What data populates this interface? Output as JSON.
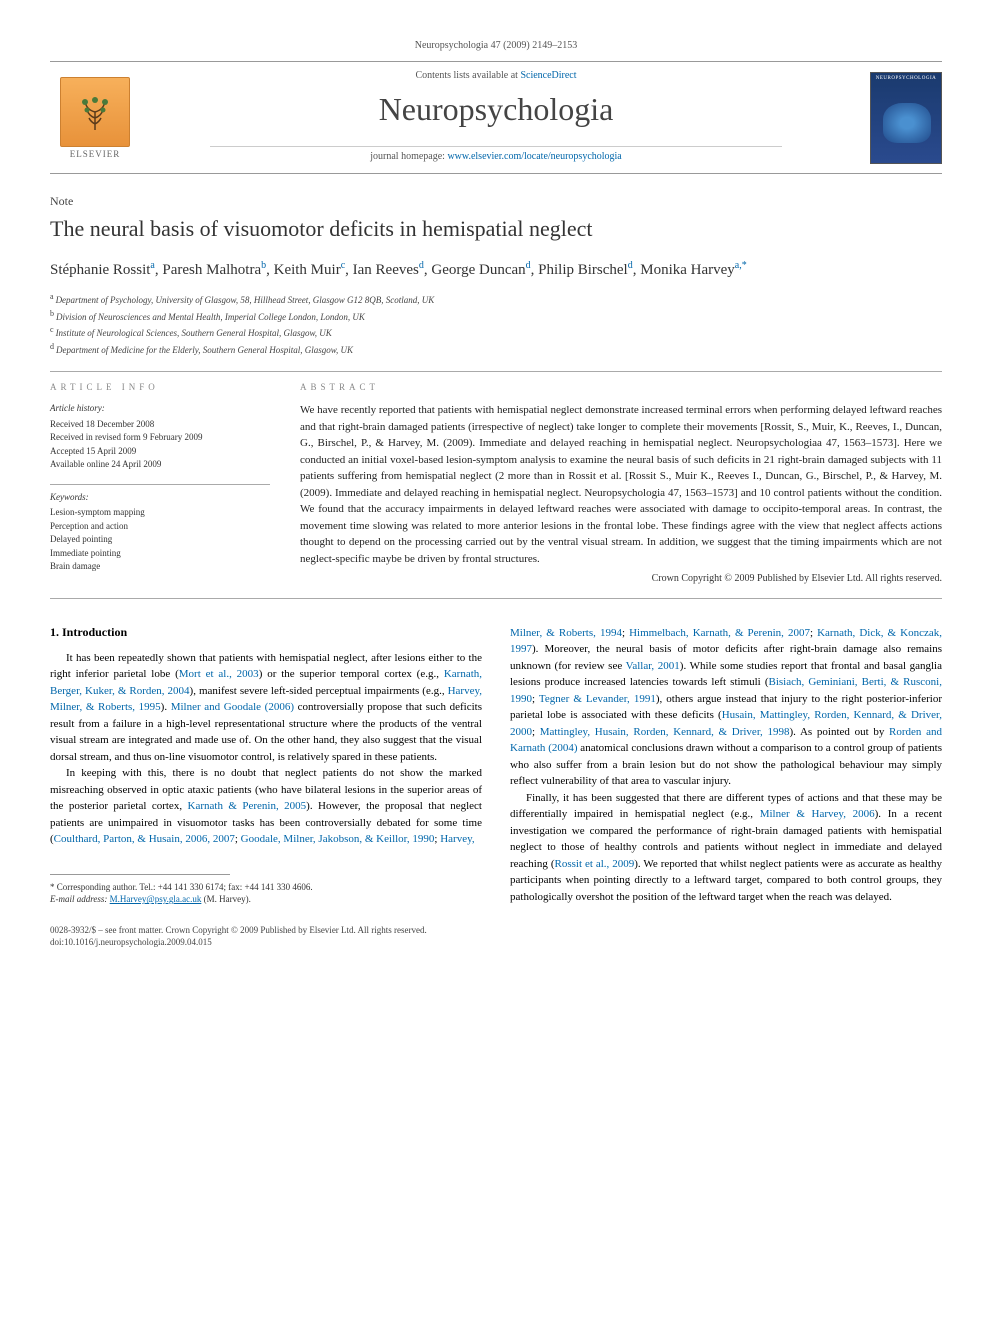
{
  "header": {
    "running": "Neuropsychologia 47 (2009) 2149–2153",
    "contents_prefix": "Contents lists available at ",
    "contents_link": "ScienceDirect",
    "journal": "Neuropsychologia",
    "homepage_prefix": "journal homepage: ",
    "homepage_url": "www.elsevier.com/locate/neuropsychologia",
    "publisher": "ELSEVIER",
    "cover_label": "NEUROPSYCHOLOGIA"
  },
  "article": {
    "type": "Note",
    "title": "The neural basis of visuomotor deficits in hemispatial neglect",
    "authors_html": "Stéphanie Rossit<span class='sup'>a</span>, Paresh Malhotra<span class='sup'>b</span>, Keith Muir<span class='sup'>c</span>, Ian Reeves<span class='sup'>d</span>, George Duncan<span class='sup'>d</span>, Philip Birschel<span class='sup'>d</span>, Monika Harvey<span class='sup'>a,*</span>",
    "affiliations": [
      {
        "sup": "a",
        "text": "Department of Psychology, University of Glasgow, 58, Hillhead Street, Glasgow G12 8QB, Scotland, UK"
      },
      {
        "sup": "b",
        "text": "Division of Neurosciences and Mental Health, Imperial College London, London, UK"
      },
      {
        "sup": "c",
        "text": "Institute of Neurological Sciences, Southern General Hospital, Glasgow, UK"
      },
      {
        "sup": "d",
        "text": "Department of Medicine for the Elderly, Southern General Hospital, Glasgow, UK"
      }
    ]
  },
  "info": {
    "heading": "ARTICLE INFO",
    "history_label": "Article history:",
    "history": [
      "Received 18 December 2008",
      "Received in revised form 9 February 2009",
      "Accepted 15 April 2009",
      "Available online 24 April 2009"
    ],
    "keywords_label": "Keywords:",
    "keywords": [
      "Lesion-symptom mapping",
      "Perception and action",
      "Delayed pointing",
      "Immediate pointing",
      "Brain damage"
    ]
  },
  "abstract": {
    "heading": "ABSTRACT",
    "text": "We have recently reported that patients with hemispatial neglect demonstrate increased terminal errors when performing delayed leftward reaches and that right-brain damaged patients (irrespective of neglect) take longer to complete their movements [Rossit, S., Muir, K., Reeves, I., Duncan, G., Birschel, P., & Harvey, M. (2009). Immediate and delayed reaching in hemispatial neglect. Neuropsychologiaa 47, 1563–1573]. Here we conducted an initial voxel-based lesion-symptom analysis to examine the neural basis of such deficits in 21 right-brain damaged subjects with 11 patients suffering from hemispatial neglect (2 more than in Rossit et al. [Rossit S., Muir K., Reeves I., Duncan, G., Birschel, P., & Harvey, M. (2009). Immediate and delayed reaching in hemispatial neglect. Neuropsychologia 47, 1563–1573] and 10 control patients without the condition. We found that the accuracy impairments in delayed leftward reaches were associated with damage to occipito-temporal areas. In contrast, the movement time slowing was related to more anterior lesions in the frontal lobe. These findings agree with the view that neglect affects actions thought to depend on the processing carried out by the ventral visual stream. In addition, we suggest that the timing impairments which are not neglect-specific maybe be driven by frontal structures.",
    "copyright": "Crown Copyright © 2009 Published by Elsevier Ltd. All rights reserved."
  },
  "body": {
    "section_number": "1.",
    "section_title": "Introduction",
    "p1_html": "It has been repeatedly shown that patients with hemispatial neglect, after lesions either to the right inferior parietal lobe (<span class='ref'>Mort et al., 2003</span>) or the superior temporal cortex (e.g., <span class='ref'>Karnath, Berger, Kuker, & Rorden, 2004</span>), manifest severe left-sided perceptual impairments (e.g., <span class='ref'>Harvey, Milner, & Roberts, 1995</span>). <span class='ref'>Milner and Goodale (2006)</span> controversially propose that such deficits result from a failure in a high-level representational structure where the products of the ventral visual stream are integrated and made use of. On the other hand, they also suggest that the visual dorsal stream, and thus on-line visuomotor control, is relatively spared in these patients.",
    "p2_html": "In keeping with this, there is no doubt that neglect patients do not show the marked misreaching observed in optic ataxic patients (who have bilateral lesions in the superior areas of the posterior parietal cortex, <span class='ref'>Karnath & Perenin, 2005</span>). However, the proposal that neglect patients are unimpaired in visuomotor tasks has been controversially debated for some time (<span class='ref'>Coulthard, Parton, & Husain, 2006, 2007</span>; <span class='ref'>Goodale, Milner, Jakobson, & Keillor, 1990</span>; <span class='ref'>Harvey,</span>",
    "p2b_html": "<span class='ref'>Milner, & Roberts, 1994</span>; <span class='ref'>Himmelbach, Karnath, & Perenin, 2007</span>; <span class='ref'>Karnath, Dick, & Konczak, 1997</span>). Moreover, the neural basis of motor deficits after right-brain damage also remains unknown (for review see <span class='ref'>Vallar, 2001</span>). While some studies report that frontal and basal ganglia lesions produce increased latencies towards left stimuli (<span class='ref'>Bisiach, Geminiani, Berti, & Rusconi, 1990</span>; <span class='ref'>Tegner & Levander, 1991</span>), others argue instead that injury to the right posterior-inferior parietal lobe is associated with these deficits (<span class='ref'>Husain, Mattingley, Rorden, Kennard, & Driver, 2000</span>; <span class='ref'>Mattingley, Husain, Rorden, Kennard, & Driver, 1998</span>). As pointed out by <span class='ref'>Rorden and Karnath (2004)</span> anatomical conclusions drawn without a comparison to a control group of patients who also suffer from a brain lesion but do not show the pathological behaviour may simply reflect vulnerability of that area to vascular injury.",
    "p3_html": "Finally, it has been suggested that there are different types of actions and that these may be differentially impaired in hemispatial neglect (e.g., <span class='ref'>Milner & Harvey, 2006</span>). In a recent investigation we compared the performance of right-brain damaged patients with hemispatial neglect to those of healthy controls and patients without neglect in immediate and delayed reaching (<span class='ref'>Rossit et al., 2009</span>). We reported that whilst neglect patients were as accurate as healthy participants when pointing directly to a leftward target, compared to both control groups, they pathologically overshot the position of the leftward target when the reach was delayed."
  },
  "footnote": {
    "corr": "* Corresponding author. Tel.: +44 141 330 6174; fax: +44 141 330 4606.",
    "email_label": "E-mail address:",
    "email": "M.Harvey@psy.gla.ac.uk",
    "email_who": "(M. Harvey)."
  },
  "footer": {
    "line1": "0028-3932/$ – see front matter. Crown Copyright © 2009 Published by Elsevier Ltd. All rights reserved.",
    "line2": "doi:10.1016/j.neuropsychologia.2009.04.015"
  },
  "colors": {
    "link": "#0066aa",
    "text": "#222222",
    "rule": "#999999",
    "elsevier_bg": "#f0a050",
    "cover_bg": "#1a3a6e"
  }
}
